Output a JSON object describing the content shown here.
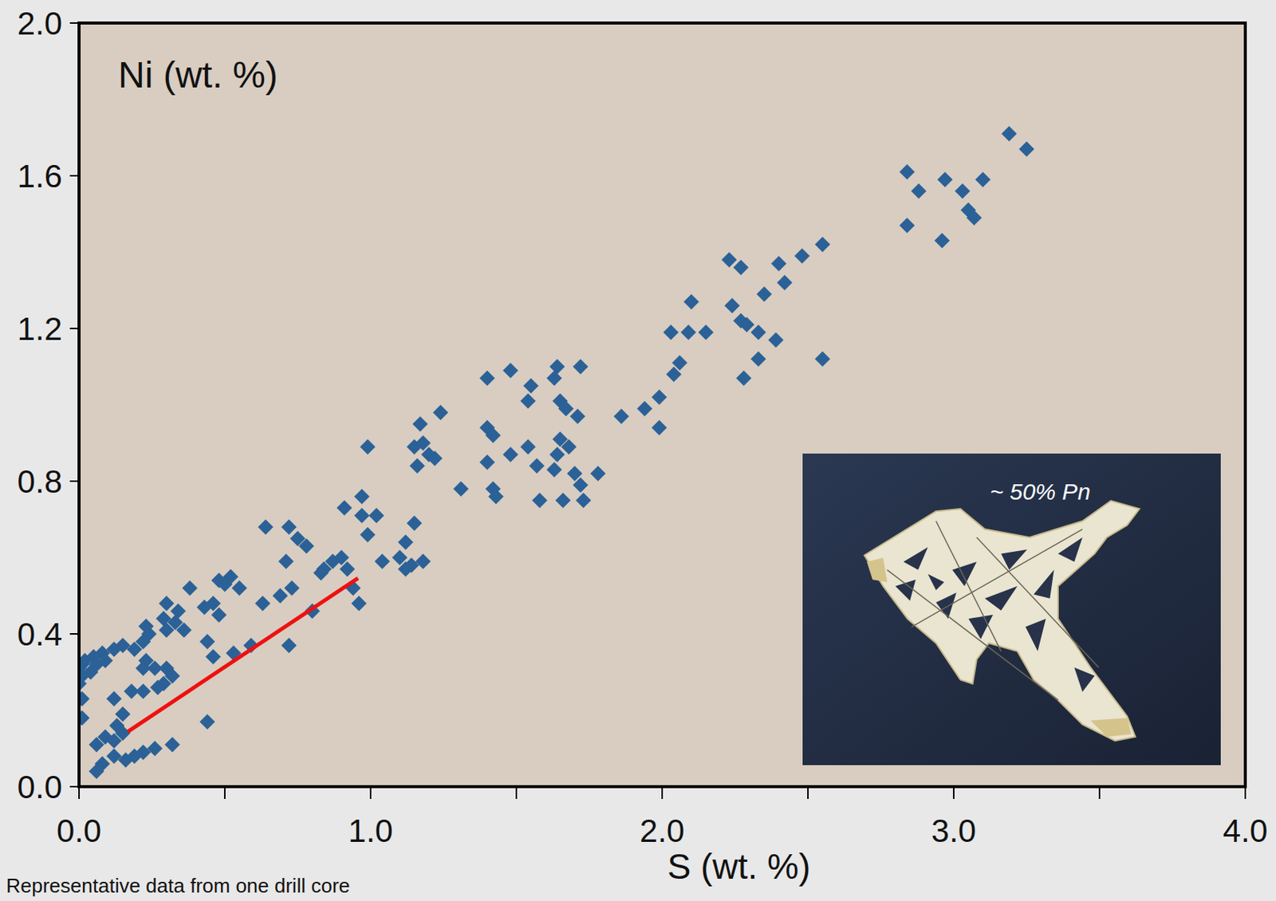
{
  "chart_data": {
    "type": "scatter",
    "x_label": "S (wt. %)",
    "y_label": "Ni (wt. %)",
    "annotation": "~ 50% Pn",
    "caption": "Representative data from one drill core",
    "color": "#2b6197",
    "marker": "diamond",
    "xlim": [
      0,
      4
    ],
    "ylim": [
      0,
      2
    ],
    "xticks": [
      {
        "value": 0,
        "label": "0.0"
      },
      {
        "value": 1,
        "label": "1.0"
      },
      {
        "value": 2,
        "label": "2.0"
      },
      {
        "value": 3,
        "label": "3.0"
      },
      {
        "value": 4,
        "label": "4.0"
      }
    ],
    "yticks": [
      {
        "value": 0,
        "label": "0.0"
      },
      {
        "value": 0.4,
        "label": "0.4"
      },
      {
        "value": 0.8,
        "label": "0.8"
      },
      {
        "value": 1.2,
        "label": "1.2"
      },
      {
        "value": 1.6,
        "label": "1.6"
      },
      {
        "value": 2,
        "label": "2.0"
      }
    ],
    "grid": false,
    "x": [
      3.19,
      3.25,
      2.84,
      2.88,
      2.97,
      3.03,
      3.1,
      3.05,
      3.07,
      2.84,
      2.96,
      2.55,
      2.48,
      2.4,
      2.42,
      2.35,
      2.23,
      2.27,
      2.24,
      2.27,
      2.29,
      2.33,
      2.39,
      2.33,
      2.28,
      2.55,
      2.1,
      2.03,
      2.09,
      2.15,
      2.06,
      2.04,
      1.99,
      1.94,
      1.86,
      1.99,
      1.72,
      1.64,
      1.63,
      1.65,
      1.67,
      1.71,
      1.55,
      1.54,
      1.48,
      1.4,
      1.4,
      1.42,
      1.48,
      1.54,
      1.57,
      1.4,
      1.42,
      1.43,
      1.58,
      1.66,
      1.73,
      1.65,
      1.68,
      1.64,
      1.63,
      1.7,
      1.72,
      1.78,
      1.31,
      1.24,
      1.17,
      1.15,
      1.18,
      1.2,
      1.22,
      1.16,
      0.99,
      0.97,
      1.02,
      0.97,
      0.99,
      0.91,
      1.15,
      1.12,
      1.04,
      1.1,
      1.14,
      1.18,
      1.12,
      0.9,
      0.87,
      0.84,
      0.92,
      0.83,
      0.94,
      0.96,
      0.8,
      0.64,
      0.72,
      0.75,
      0.78,
      0.71,
      0.73,
      0.69,
      0.63,
      0.72,
      0.48,
      0.52,
      0.55,
      0.5,
      0.46,
      0.43,
      0.48,
      0.44,
      0.46,
      0.53,
      0.59,
      0.38,
      0.34,
      0.3,
      0.33,
      0.36,
      0.29,
      0.3,
      0.44,
      0.23,
      0.24,
      0.22,
      0.19,
      0.15,
      0.12,
      0.08,
      0.05,
      0.02,
      0.01,
      0.0,
      0.01,
      0.04,
      0.06,
      0.09,
      0.0,
      0.01,
      0.01,
      0.23,
      0.26,
      0.3,
      0.32,
      0.29,
      0.27,
      0.22,
      0.18,
      0.22,
      0.12,
      0.15,
      0.13,
      0.15,
      0.09,
      0.06,
      0.08,
      0.12,
      0.16,
      0.19,
      0.22,
      0.26,
      0.32,
      0.06,
      0.12
    ],
    "values": [
      1.71,
      1.67,
      1.61,
      1.56,
      1.59,
      1.56,
      1.59,
      1.51,
      1.49,
      1.47,
      1.43,
      1.42,
      1.39,
      1.37,
      1.32,
      1.29,
      1.38,
      1.36,
      1.26,
      1.22,
      1.21,
      1.19,
      1.17,
      1.12,
      1.07,
      1.12,
      1.27,
      1.19,
      1.19,
      1.19,
      1.11,
      1.08,
      1.02,
      0.99,
      0.97,
      0.94,
      1.1,
      1.1,
      1.07,
      1.01,
      0.99,
      0.97,
      1.05,
      1.01,
      1.09,
      1.07,
      0.94,
      0.92,
      0.87,
      0.89,
      0.84,
      0.85,
      0.78,
      0.76,
      0.75,
      0.75,
      0.75,
      0.91,
      0.89,
      0.87,
      0.83,
      0.82,
      0.79,
      0.82,
      0.78,
      0.98,
      0.95,
      0.89,
      0.9,
      0.87,
      0.86,
      0.84,
      0.89,
      0.76,
      0.71,
      0.71,
      0.66,
      0.73,
      0.69,
      0.64,
      0.59,
      0.6,
      0.58,
      0.59,
      0.57,
      0.6,
      0.59,
      0.57,
      0.57,
      0.56,
      0.52,
      0.48,
      0.46,
      0.68,
      0.68,
      0.65,
      0.63,
      0.59,
      0.52,
      0.5,
      0.48,
      0.37,
      0.54,
      0.55,
      0.52,
      0.53,
      0.48,
      0.47,
      0.45,
      0.38,
      0.34,
      0.35,
      0.37,
      0.52,
      0.46,
      0.48,
      0.43,
      0.41,
      0.44,
      0.41,
      0.17,
      0.42,
      0.4,
      0.38,
      0.36,
      0.37,
      0.36,
      0.35,
      0.34,
      0.33,
      0.32,
      0.31,
      0.29,
      0.3,
      0.32,
      0.33,
      0.27,
      0.23,
      0.18,
      0.33,
      0.31,
      0.31,
      0.29,
      0.27,
      0.26,
      0.31,
      0.25,
      0.25,
      0.23,
      0.19,
      0.16,
      0.14,
      0.13,
      0.11,
      0.06,
      0.08,
      0.07,
      0.08,
      0.09,
      0.1,
      0.11,
      0.04,
      0.12
    ]
  }
}
